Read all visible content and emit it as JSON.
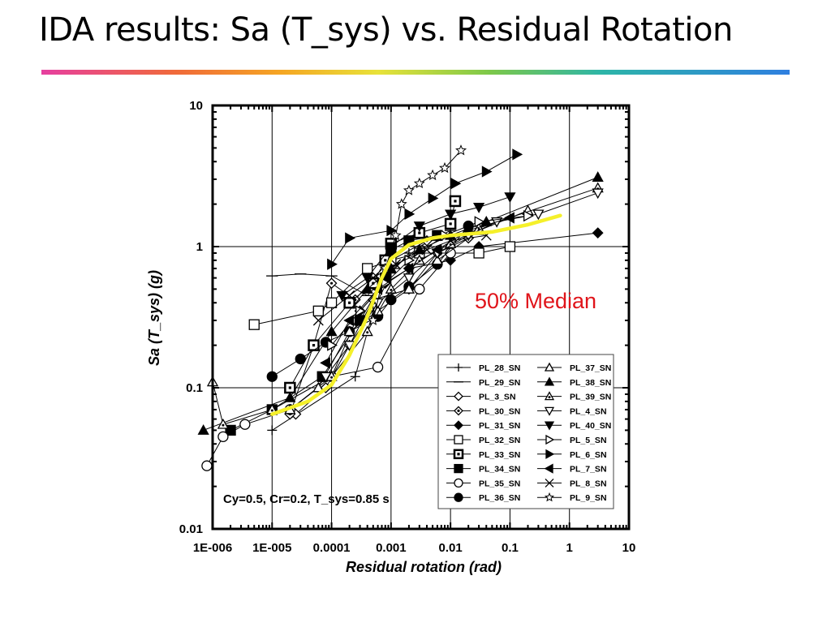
{
  "slide": {
    "title": "IDA results: Sa (T_sys) vs. Residual Rotation"
  },
  "chart_data": {
    "type": "line",
    "xscale": "log",
    "yscale": "log",
    "xlim": [
      1e-06,
      10
    ],
    "ylim": [
      0.01,
      10
    ],
    "grid": true,
    "xlabel": "Residual rotation (rad)",
    "ylabel": "Sa (T_sys) (g)",
    "x_tick_labels": [
      "1E-006",
      "1E-005",
      "0.0001",
      "0.001",
      "0.01",
      "0.1",
      "1",
      "10"
    ],
    "y_tick_labels": [
      "0.01",
      "0.1",
      "1",
      "10"
    ],
    "annotations": {
      "median_label": "50% Median",
      "parameters": "Cy=0.5, Cr=0.2, T_sys=0.85 s"
    },
    "legend_placement": "bottom-right",
    "legend": [
      "PL_28_SN",
      "PL_29_SN",
      "PL_3_SN",
      "PL_30_SN",
      "PL_31_SN",
      "PL_32_SN",
      "PL_33_SN",
      "PL_34_SN",
      "PL_35_SN",
      "PL_36_SN",
      "PL_37_SN",
      "PL_38_SN",
      "PL_39_SN",
      "PL_4_SN",
      "PL_40_SN",
      "PL_5_SN",
      "PL_6_SN",
      "PL_7_SN",
      "PL_8_SN",
      "PL_9_SN"
    ],
    "median": {
      "color": "#f5f02a",
      "x": [
        1e-05,
        4e-05,
        0.0001,
        0.0002,
        0.0004,
        0.0007,
        0.001,
        0.002,
        0.005,
        0.01,
        0.05,
        0.2,
        0.7
      ],
      "y": [
        0.065,
        0.08,
        0.105,
        0.17,
        0.32,
        0.6,
        0.82,
        1.03,
        1.15,
        1.2,
        1.27,
        1.43,
        1.66
      ]
    },
    "series": [
      {
        "name": "PL_28_SN",
        "x": [
          1e-05,
          0.00025,
          0.0005,
          0.001,
          0.002
        ],
        "y": [
          0.05,
          0.12,
          0.35,
          0.65,
          0.9
        ]
      },
      {
        "name": "PL_29_SN",
        "x": [
          1e-05,
          3e-05,
          0.0001,
          0.0004,
          0.0011,
          0.003,
          0.01
        ],
        "y": [
          0.62,
          0.64,
          0.62,
          0.45,
          0.7,
          1.0,
          1.3
        ]
      },
      {
        "name": "PL_3_SN",
        "x": [
          2.5e-05,
          8e-05,
          0.0002,
          0.0005,
          0.002,
          0.006,
          0.02
        ],
        "y": [
          0.065,
          0.1,
          0.2,
          0.42,
          0.5,
          0.9,
          1.15
        ]
      },
      {
        "name": "PL_30_SN",
        "x": [
          2e-05,
          5e-05,
          0.0001,
          0.00025,
          0.0005,
          0.001,
          0.004
        ],
        "y": [
          0.065,
          0.2,
          0.55,
          0.42,
          0.6,
          0.8,
          1.1
        ]
      },
      {
        "name": "PL_31_SN",
        "x": [
          0.0001,
          0.0003,
          0.0008,
          0.002,
          0.01,
          0.03,
          3.0
        ],
        "y": [
          0.12,
          0.35,
          0.55,
          0.7,
          0.8,
          1.0,
          1.25
        ]
      },
      {
        "name": "PL_32_SN",
        "x": [
          5e-06,
          6e-05,
          0.0001,
          0.0004,
          0.001,
          0.003,
          0.03,
          0.1
        ],
        "y": [
          0.28,
          0.35,
          0.4,
          0.7,
          0.8,
          0.9,
          0.9,
          1.0
        ]
      },
      {
        "name": "PL_33_SN",
        "x": [
          2e-05,
          5e-05,
          0.0002,
          0.0005,
          0.0008,
          0.001,
          0.003,
          0.01,
          0.012
        ],
        "y": [
          0.1,
          0.2,
          0.4,
          0.55,
          0.8,
          1.05,
          1.25,
          1.45,
          2.1
        ]
      },
      {
        "name": "PL_34_SN",
        "x": [
          2e-06,
          1e-05,
          7e-05,
          0.0003,
          0.0008,
          0.001,
          0.002,
          0.006
        ],
        "y": [
          0.05,
          0.07,
          0.12,
          0.3,
          0.6,
          0.95,
          1.1,
          1.2
        ]
      },
      {
        "name": "PL_35_SN",
        "x": [
          8e-07,
          1.5e-06,
          3.5e-06,
          2e-05,
          0.0001,
          0.0006,
          0.003,
          0.01
        ],
        "y": [
          0.028,
          0.045,
          0.055,
          0.07,
          0.12,
          0.14,
          0.5,
          0.9
        ]
      },
      {
        "name": "PL_36_SN",
        "x": [
          1e-05,
          3e-05,
          8e-05,
          0.0002,
          0.0006,
          0.001,
          0.002,
          0.006,
          0.02
        ],
        "y": [
          0.12,
          0.16,
          0.21,
          0.25,
          0.32,
          0.42,
          0.52,
          0.75,
          1.4
        ]
      },
      {
        "name": "PL_37_SN",
        "x": [
          2e-05,
          6e-05,
          0.0002,
          0.0006,
          0.002,
          0.006,
          0.03,
          0.2
        ],
        "y": [
          0.07,
          0.1,
          0.25,
          0.35,
          0.5,
          0.8,
          1.3,
          1.8
        ]
      },
      {
        "name": "PL_38_SN",
        "x": [
          7e-07,
          2e-05,
          0.0001,
          0.0004,
          0.001,
          0.003,
          0.01,
          0.04,
          3.0
        ],
        "y": [
          0.05,
          0.085,
          0.25,
          0.5,
          0.7,
          0.95,
          1.2,
          1.5,
          3.1
        ]
      },
      {
        "name": "PL_39_SN",
        "x": [
          1e-06,
          1.5e-06,
          1e-05,
          0.0001,
          0.0004,
          0.001,
          0.003,
          0.01,
          0.03,
          3.0
        ],
        "y": [
          0.11,
          0.055,
          0.07,
          0.12,
          0.25,
          0.5,
          0.8,
          1.05,
          1.35,
          2.6
        ]
      },
      {
        "name": "PL_4_SN",
        "x": [
          8e-05,
          0.0002,
          0.0006,
          0.002,
          0.006,
          0.02,
          0.06,
          0.3,
          3.0
        ],
        "y": [
          0.12,
          0.2,
          0.4,
          0.6,
          0.9,
          1.2,
          1.5,
          1.7,
          2.4
        ]
      },
      {
        "name": "PL_40_SN",
        "x": [
          0.00015,
          0.0004,
          0.001,
          0.003,
          0.01,
          0.03,
          0.1
        ],
        "y": [
          0.45,
          0.6,
          1.0,
          1.4,
          1.7,
          1.9,
          2.25
        ]
      },
      {
        "name": "PL_5_SN",
        "x": [
          0.0001,
          0.0003,
          0.0008,
          0.002,
          0.008,
          0.03,
          0.2
        ],
        "y": [
          0.2,
          0.35,
          0.55,
          0.8,
          1.2,
          1.5,
          1.65
        ]
      },
      {
        "name": "PL_6_SN",
        "x": [
          0.0001,
          0.0002,
          0.001,
          0.002,
          0.005,
          0.012,
          0.04,
          0.13
        ],
        "y": [
          0.75,
          1.15,
          1.3,
          1.7,
          2.2,
          2.8,
          3.4,
          4.5
        ]
      },
      {
        "name": "PL_7_SN",
        "x": [
          8e-05,
          0.0002,
          0.0006,
          0.002,
          0.006,
          0.02,
          0.1
        ],
        "y": [
          0.15,
          0.3,
          0.5,
          0.7,
          0.95,
          1.3,
          1.6
        ]
      },
      {
        "name": "PL_8_SN",
        "x": [
          6e-05,
          0.0002,
          0.0005,
          0.0012,
          0.004,
          0.01,
          0.04
        ],
        "y": [
          0.3,
          0.45,
          0.6,
          0.75,
          0.95,
          1.1,
          1.2
        ]
      },
      {
        "name": "PL_9_SN",
        "x": [
          0.0005,
          0.0008,
          0.0012,
          0.0015,
          0.002,
          0.003,
          0.005,
          0.008,
          0.015
        ],
        "y": [
          0.3,
          0.7,
          1.2,
          2.0,
          2.5,
          2.8,
          3.2,
          3.6,
          4.8
        ]
      }
    ]
  }
}
